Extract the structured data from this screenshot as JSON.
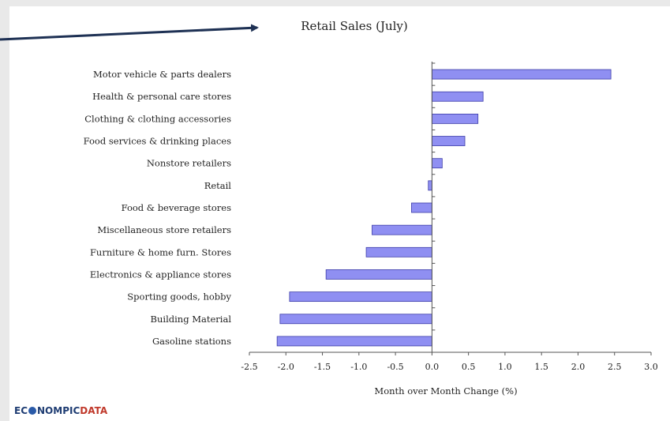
{
  "logo_text": "ECONOMPICDATA",
  "colors": {
    "bar_fill": "#8f8ff2",
    "bar_stroke": "#3d3da8",
    "arrow": "#1e3154"
  },
  "chart_data": {
    "type": "bar",
    "orientation": "horizontal",
    "title": "Retail Sales (July)",
    "xlabel": "Month over Month Change (%)",
    "ylabel": "",
    "xlim": [
      -2.5,
      3.0
    ],
    "xticks": [
      "-2.5",
      "-2.0",
      "-1.5",
      "-1.0",
      "-0.5",
      "0.0",
      "0.5",
      "1.0",
      "1.5",
      "2.0",
      "2.5",
      "3.0"
    ],
    "grid": false,
    "categories": [
      "Motor vehicle & parts dealers",
      "Health & personal care stores",
      "Clothing & clothing accessories",
      "Food services & drinking places",
      "Nonstore retailers",
      "Retail",
      "Food & beverage stores",
      "Miscellaneous store retailers",
      "Furniture & home furn. Stores",
      "Electronics & appliance stores",
      "Sporting goods, hobby",
      "Building Material",
      "Gasoline stations"
    ],
    "values": [
      2.45,
      0.7,
      0.63,
      0.45,
      0.14,
      -0.05,
      -0.28,
      -0.82,
      -0.9,
      -1.45,
      -1.95,
      -2.08,
      -2.12
    ]
  }
}
